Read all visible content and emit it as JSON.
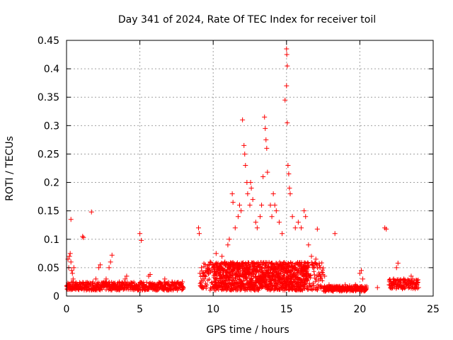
{
  "chart_data": {
    "type": "scatter",
    "title": "Day 341 of 2024, Rate Of TEC Index for receiver toil",
    "xlabel": "GPS time / hours",
    "ylabel": "ROTI / TECUs",
    "xlim": [
      0,
      25
    ],
    "ylim": [
      0,
      0.45
    ],
    "xticks": [
      0,
      5,
      10,
      15,
      20,
      25
    ],
    "xtick_labels": [
      "0",
      "5",
      "10",
      "15",
      "20",
      "25"
    ],
    "yticks": [
      0,
      0.05,
      0.1,
      0.15,
      0.2,
      0.25,
      0.3,
      0.35,
      0.4,
      0.45
    ],
    "ytick_labels": [
      "0",
      "0.05",
      "0.1",
      "0.15",
      "0.2",
      "0.25",
      "0.3",
      "0.35",
      "0.4",
      "0.45"
    ],
    "grid": true,
    "marker": "plus",
    "color": "#ff0000",
    "series": [
      {
        "name": "ROTI",
        "points": [
          [
            0.1,
            0.065
          ],
          [
            0.2,
            0.07
          ],
          [
            0.25,
            0.075
          ],
          [
            0.3,
            0.06
          ],
          [
            0.35,
            0.045
          ],
          [
            0.15,
            0.05
          ],
          [
            0.4,
            0.04
          ],
          [
            0.45,
            0.03
          ],
          [
            0.5,
            0.05
          ],
          [
            0.3,
            0.135
          ],
          [
            0.1,
            0.02
          ],
          [
            0.2,
            0.015
          ],
          [
            0.4,
            0.012
          ],
          [
            0.6,
            0.018
          ],
          [
            0.8,
            0.015
          ],
          [
            1.0,
            0.013
          ],
          [
            1.1,
            0.105
          ],
          [
            1.15,
            0.103
          ],
          [
            1.2,
            0.02
          ],
          [
            1.5,
            0.02
          ],
          [
            1.7,
            0.148
          ],
          [
            1.8,
            0.025
          ],
          [
            2.0,
            0.03
          ],
          [
            2.2,
            0.05
          ],
          [
            2.3,
            0.055
          ],
          [
            2.5,
            0.02
          ],
          [
            2.7,
            0.03
          ],
          [
            2.9,
            0.05
          ],
          [
            3.0,
            0.06
          ],
          [
            3.1,
            0.072
          ],
          [
            3.3,
            0.02
          ],
          [
            3.6,
            0.025
          ],
          [
            3.8,
            0.015
          ],
          [
            4.0,
            0.03
          ],
          [
            4.1,
            0.035
          ],
          [
            4.3,
            0.02
          ],
          [
            4.6,
            0.015
          ],
          [
            4.9,
            0.02
          ],
          [
            5.0,
            0.11
          ],
          [
            5.1,
            0.098
          ],
          [
            5.3,
            0.015
          ],
          [
            5.6,
            0.035
          ],
          [
            5.7,
            0.038
          ],
          [
            5.9,
            0.012
          ],
          [
            6.2,
            0.015
          ],
          [
            6.5,
            0.02
          ],
          [
            6.7,
            0.03
          ],
          [
            6.9,
            0.02
          ],
          [
            7.2,
            0.025
          ],
          [
            7.5,
            0.015
          ],
          [
            7.8,
            0.02
          ],
          [
            7.9,
            0.025
          ],
          [
            9.0,
            0.12
          ],
          [
            9.05,
            0.11
          ],
          [
            9.1,
            0.04
          ],
          [
            9.2,
            0.05
          ],
          [
            9.3,
            0.03
          ],
          [
            9.5,
            0.045
          ],
          [
            9.7,
            0.04
          ],
          [
            9.8,
            0.06
          ],
          [
            10.0,
            0.055
          ],
          [
            10.2,
            0.075
          ],
          [
            10.4,
            0.05
          ],
          [
            10.6,
            0.07
          ],
          [
            10.8,
            0.06
          ],
          [
            11.0,
            0.09
          ],
          [
            11.1,
            0.1
          ],
          [
            11.3,
            0.18
          ],
          [
            11.35,
            0.165
          ],
          [
            11.5,
            0.12
          ],
          [
            11.7,
            0.14
          ],
          [
            11.8,
            0.16
          ],
          [
            11.9,
            0.15
          ],
          [
            12.0,
            0.31
          ],
          [
            12.1,
            0.265
          ],
          [
            12.15,
            0.25
          ],
          [
            12.2,
            0.23
          ],
          [
            12.3,
            0.2
          ],
          [
            12.35,
            0.18
          ],
          [
            12.5,
            0.16
          ],
          [
            12.55,
            0.2
          ],
          [
            12.6,
            0.19
          ],
          [
            12.7,
            0.17
          ],
          [
            12.9,
            0.13
          ],
          [
            13.0,
            0.12
          ],
          [
            13.2,
            0.14
          ],
          [
            13.3,
            0.16
          ],
          [
            13.4,
            0.21
          ],
          [
            13.5,
            0.315
          ],
          [
            13.55,
            0.295
          ],
          [
            13.6,
            0.275
          ],
          [
            13.65,
            0.26
          ],
          [
            13.7,
            0.218
          ],
          [
            13.9,
            0.16
          ],
          [
            14.0,
            0.14
          ],
          [
            14.1,
            0.18
          ],
          [
            14.2,
            0.16
          ],
          [
            14.3,
            0.15
          ],
          [
            14.5,
            0.13
          ],
          [
            14.7,
            0.11
          ],
          [
            14.9,
            0.345
          ],
          [
            15.0,
            0.435
          ],
          [
            15.02,
            0.425
          ],
          [
            15.05,
            0.405
          ],
          [
            15.0,
            0.37
          ],
          [
            15.05,
            0.305
          ],
          [
            15.1,
            0.23
          ],
          [
            15.15,
            0.215
          ],
          [
            15.2,
            0.19
          ],
          [
            15.25,
            0.18
          ],
          [
            15.4,
            0.14
          ],
          [
            15.6,
            0.12
          ],
          [
            15.8,
            0.13
          ],
          [
            16.0,
            0.12
          ],
          [
            16.2,
            0.15
          ],
          [
            16.3,
            0.14
          ],
          [
            16.5,
            0.09
          ],
          [
            16.7,
            0.07
          ],
          [
            17.0,
            0.065
          ],
          [
            17.1,
            0.118
          ],
          [
            17.3,
            0.03
          ],
          [
            17.6,
            0.035
          ],
          [
            17.9,
            0.02
          ],
          [
            18.3,
            0.11
          ],
          [
            18.6,
            0.015
          ],
          [
            19.0,
            0.02
          ],
          [
            19.3,
            0.018
          ],
          [
            19.7,
            0.02
          ],
          [
            20.0,
            0.04
          ],
          [
            20.1,
            0.045
          ],
          [
            20.2,
            0.03
          ],
          [
            20.4,
            0.015
          ],
          [
            21.2,
            0.015
          ],
          [
            21.7,
            0.12
          ],
          [
            21.8,
            0.118
          ],
          [
            22.0,
            0.02
          ],
          [
            22.3,
            0.03
          ],
          [
            22.5,
            0.05
          ],
          [
            22.6,
            0.058
          ],
          [
            22.8,
            0.025
          ],
          [
            23.0,
            0.03
          ],
          [
            23.2,
            0.02
          ],
          [
            23.5,
            0.035
          ],
          [
            23.6,
            0.03
          ],
          [
            23.9,
            0.02
          ],
          [
            24.0,
            0.015
          ]
        ]
      }
    ]
  }
}
